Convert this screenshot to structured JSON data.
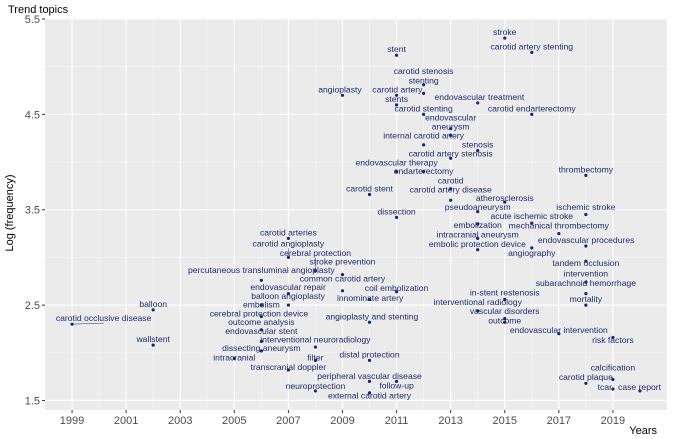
{
  "chart_data": {
    "type": "scatter",
    "title": "Trend topics",
    "xlabel": "Years",
    "ylabel": "Log (frequency)",
    "xlim": [
      1998.0,
      2021.0
    ],
    "ylim": [
      1.4,
      5.5
    ],
    "x_ticks": [
      1999,
      2001,
      2003,
      2005,
      2007,
      2009,
      2011,
      2013,
      2015,
      2017,
      2019
    ],
    "y_ticks": [
      1.5,
      2.5,
      3.5,
      4.5,
      5.5
    ],
    "y_tick_labels": [
      "1.5",
      "2.5",
      "3.5",
      "4.5",
      "5.5"
    ],
    "grid": true,
    "panel_background": "#ebebeb",
    "point_color": "#1a237e",
    "label_color": "#1f2a6e",
    "points": [
      {
        "label": "stroke",
        "x": 2015,
        "y": 5.3
      },
      {
        "label": "stent",
        "x": 2011,
        "y": 5.12
      },
      {
        "label": "carotid artery stenting",
        "x": 2016,
        "y": 5.15
      },
      {
        "label": "carotid stenosis",
        "x": 2012,
        "y": 4.81
      },
      {
        "label": "carotid artery",
        "x": 2011,
        "y": 4.7
      },
      {
        "label": "stenting",
        "x": 2012,
        "y": 4.72
      },
      {
        "label": "angioplasty",
        "x": 2009,
        "y": 4.7
      },
      {
        "label": "stents",
        "x": 2011,
        "y": 4.6
      },
      {
        "label": "endovascular treatment",
        "x": 2014,
        "y": 4.62
      },
      {
        "label": "carotid endarterectomy",
        "x": 2016,
        "y": 4.5
      },
      {
        "label": "carotid stenting",
        "x": 2012,
        "y": 4.5
      },
      {
        "label": "endovascular",
        "x": 2013,
        "y": 4.35
      },
      {
        "label": "aneurysm",
        "x": 2013,
        "y": 4.28
      },
      {
        "label": "internal carotid artery",
        "x": 2012,
        "y": 4.18
      },
      {
        "label": "stenosis",
        "x": 2014,
        "y": 4.12
      },
      {
        "label": "carotid artery stenosis",
        "x": 2013,
        "y": 4.04
      },
      {
        "label": "endovascular therapy",
        "x": 2011,
        "y": 3.9
      },
      {
        "label": "endarterectomy",
        "x": 2012,
        "y": 3.9
      },
      {
        "label": "thrombectomy",
        "x": 2018,
        "y": 3.86
      },
      {
        "label": "carotid",
        "x": 2013,
        "y": 3.72
      },
      {
        "label": "carotid stent",
        "x": 2010,
        "y": 3.66
      },
      {
        "label": "carotid artery disease",
        "x": 2013,
        "y": 3.6
      },
      {
        "label": "atherosclerosis",
        "x": 2015,
        "y": 3.58
      },
      {
        "label": "pseudoaneurysm",
        "x": 2014,
        "y": 3.48
      },
      {
        "label": "ischemic stroke",
        "x": 2018,
        "y": 3.45
      },
      {
        "label": "dissection",
        "x": 2011,
        "y": 3.42
      },
      {
        "label": "acute ischemic stroke",
        "x": 2016,
        "y": 3.36
      },
      {
        "label": "embolization",
        "x": 2014,
        "y": 3.35
      },
      {
        "label": "mechanical thrombectomy",
        "x": 2017,
        "y": 3.25
      },
      {
        "label": "intracranial aneurysm",
        "x": 2014,
        "y": 3.2
      },
      {
        "label": "carotid arteries",
        "x": 2007,
        "y": 3.2
      },
      {
        "label": "endovascular procedures",
        "x": 2018,
        "y": 3.12
      },
      {
        "label": "angiography",
        "x": 2016,
        "y": 3.1
      },
      {
        "label": "embolic protection device",
        "x": 2014,
        "y": 3.08
      },
      {
        "label": "carotid angioplasty",
        "x": 2007,
        "y": 3.0
      },
      {
        "label": "tandem occlusion",
        "x": 2018,
        "y": 2.96
      },
      {
        "label": "cerebral protection",
        "x": 2008,
        "y": 2.86
      },
      {
        "label": "stroke prevention",
        "x": 2009,
        "y": 2.82
      },
      {
        "label": "percutaneous transluminal angioplasty",
        "x": 2006,
        "y": 2.76
      },
      {
        "label": "intervention",
        "x": 2018,
        "y": 2.74
      },
      {
        "label": "endovascular repair",
        "x": 2007,
        "y": 2.62
      },
      {
        "label": "common carotid artery",
        "x": 2009,
        "y": 2.65
      },
      {
        "label": "subarachnoid hemorrhage",
        "x": 2018,
        "y": 2.62
      },
      {
        "label": "coil embolization",
        "x": 2011,
        "y": 2.64
      },
      {
        "label": "innominate artery",
        "x": 2010,
        "y": 2.56
      },
      {
        "label": "embolism",
        "x": 2006,
        "y": 2.5
      },
      {
        "label": "balloon angioplasty",
        "x": 2007,
        "y": 2.5
      },
      {
        "label": "in-stent restenosis",
        "x": 2015,
        "y": 2.56
      },
      {
        "label": "balloon",
        "x": 2002,
        "y": 2.45
      },
      {
        "label": "mortality",
        "x": 2018,
        "y": 2.5
      },
      {
        "label": "interventional radiology",
        "x": 2014,
        "y": 2.44
      },
      {
        "label": "cerebral protection device",
        "x": 2006,
        "y": 2.38
      },
      {
        "label": "angioplasty and stenting",
        "x": 2010,
        "y": 2.32
      },
      {
        "label": "vascular disorders",
        "x": 2015,
        "y": 2.36
      },
      {
        "label": "outcome",
        "x": 2015,
        "y": 2.32
      },
      {
        "label": "carotid occlusive disease",
        "x": 1999,
        "y": 2.3
      },
      {
        "label": "outcome analysis",
        "x": 2006,
        "y": 2.24
      },
      {
        "label": "endovascular intervention",
        "x": 2017,
        "y": 2.2
      },
      {
        "label": "endovascular stent",
        "x": 2006,
        "y": 2.12
      },
      {
        "label": "risk factors",
        "x": 2019,
        "y": 2.16
      },
      {
        "label": "wallstent",
        "x": 2002,
        "y": 2.08
      },
      {
        "label": "interventional neuroradiology",
        "x": 2008,
        "y": 2.06
      },
      {
        "label": "dissecting aneurysm",
        "x": 2006,
        "y": 2.02
      },
      {
        "label": "intracranial",
        "x": 2005,
        "y": 1.94
      },
      {
        "label": "filter",
        "x": 2008,
        "y": 1.92
      },
      {
        "label": "distal protection",
        "x": 2010,
        "y": 1.92
      },
      {
        "label": "transcranial doppler",
        "x": 2007,
        "y": 1.82
      },
      {
        "label": "peripheral vascular disease",
        "x": 2010,
        "y": 1.7
      },
      {
        "label": "follow-up",
        "x": 2011,
        "y": 1.7
      },
      {
        "label": "calcification",
        "x": 2019,
        "y": 1.72
      },
      {
        "label": "carotid plaque",
        "x": 2018,
        "y": 1.68
      },
      {
        "label": "neuroprotection",
        "x": 2008,
        "y": 1.6
      },
      {
        "label": "external carotid artery",
        "x": 2010,
        "y": 1.58
      },
      {
        "label": "tcar",
        "x": 2019,
        "y": 1.62
      },
      {
        "label": "case report",
        "x": 2020,
        "y": 1.6
      }
    ]
  }
}
